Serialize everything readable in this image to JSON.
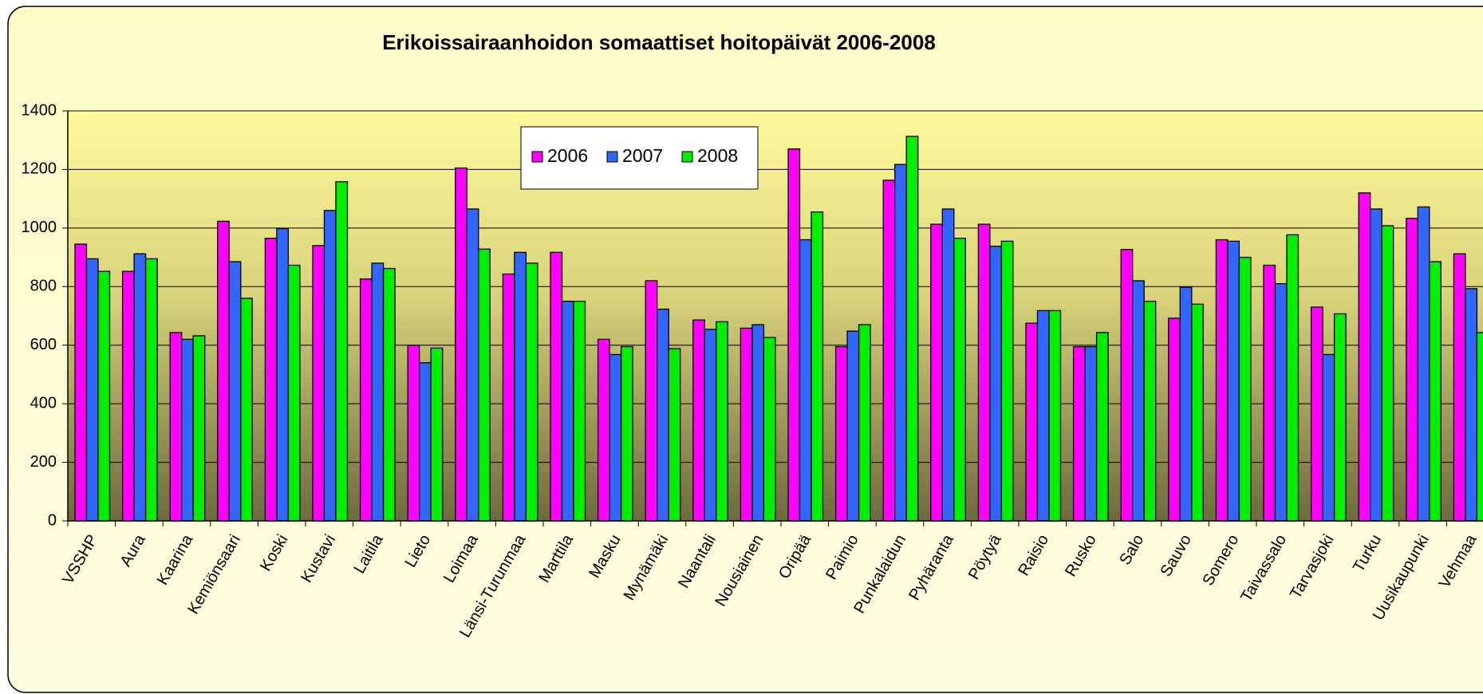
{
  "chart_data": {
    "type": "bar",
    "title": "Erikoissairaanhoidon somaattiset hoitopäivät 2006-2008",
    "categories": [
      "VSSHP",
      "Aura",
      "Kaarina",
      "Kemiönsaari",
      "Koski",
      "Kustavi",
      "Laitila",
      "Lieto",
      "Loimaa",
      "Länsi-Turunmaa",
      "Marttila",
      "Masku",
      "Mynämäki",
      "Naantali",
      "Nousiainen",
      "Oripää",
      "Paimio",
      "Punkalaidun",
      "Pyhäranta",
      "Pöytyä",
      "Raisio",
      "Rusko",
      "Salo",
      "Sauvo",
      "Somero",
      "Taivassalo",
      "Tarvasjoki",
      "Turku",
      "Uusikaupunki",
      "Vehmaa"
    ],
    "series": [
      {
        "name": "2006",
        "color": "#ff00ff",
        "values": [
          945,
          852,
          643,
          1023,
          965,
          940,
          826,
          600,
          1205,
          843,
          917,
          620,
          820,
          686,
          658,
          1270,
          595,
          1163,
          1013,
          1013,
          675,
          595,
          927,
          692,
          960,
          873,
          730,
          1120,
          1033,
          912
        ]
      },
      {
        "name": "2007",
        "color": "#3366ff",
        "values": [
          895,
          912,
          620,
          885,
          998,
          1060,
          880,
          540,
          1065,
          917,
          750,
          568,
          723,
          654,
          670,
          960,
          648,
          1217,
          1065,
          938,
          718,
          595,
          820,
          798,
          955,
          810,
          568,
          1065,
          1072,
          793
        ]
      },
      {
        "name": "2008",
        "color": "#00ee00",
        "values": [
          852,
          895,
          632,
          760,
          873,
          1158,
          862,
          590,
          928,
          880,
          750,
          595,
          588,
          680,
          626,
          1055,
          670,
          1313,
          965,
          955,
          718,
          643,
          750,
          740,
          900,
          977,
          707,
          1008,
          885,
          643
        ]
      }
    ],
    "ylim": [
      0,
      1400
    ],
    "yticks": [
      0,
      200,
      400,
      600,
      800,
      1000,
      1200,
      1400
    ],
    "grid": true
  }
}
